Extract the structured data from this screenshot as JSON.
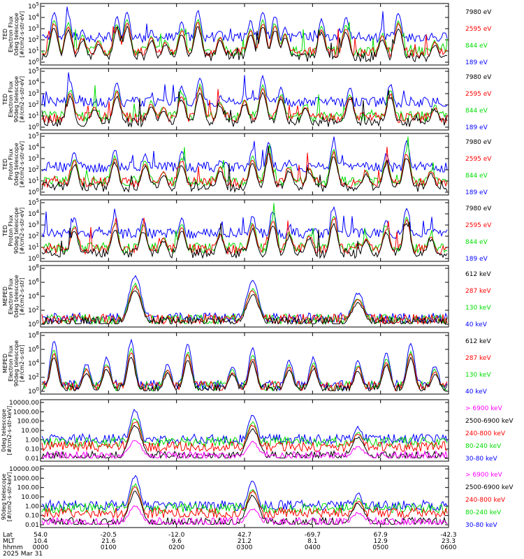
{
  "date_label": "2025 Mar 31",
  "axis_rows": [
    {
      "label": "Lat",
      "values": [
        "54.0",
        "-20.5",
        "-12.0",
        "42.7",
        "-69.7",
        "67.9",
        "-42.3"
      ]
    },
    {
      "label": "MLT",
      "values": [
        "10.4",
        "21.6",
        "9.6",
        "21.2",
        "8.1",
        "12.9",
        "23.3"
      ]
    },
    {
      "label": "hhmm",
      "values": [
        "0000",
        "0100",
        "0200",
        "0300",
        "0400",
        "0500",
        "0600"
      ]
    }
  ],
  "colors": {
    "black": "#000000",
    "red": "#ff0000",
    "green": "#00dd00",
    "blue": "#0000ff",
    "magenta": "#ff00ff"
  },
  "chart_data": [
    {
      "type": "line",
      "instrument": "TED",
      "ylabel": [
        "TED",
        "Electron Flux",
        "0deg telescope",
        "[#/cm2-s-str-eV]"
      ],
      "yscale": "log",
      "ylim": [
        1,
        100000
      ],
      "y_ticks": [
        "10^0",
        "10^1",
        "10^2",
        "10^3",
        "10^4",
        "10^5"
      ],
      "peaks": [
        0.03,
        0.065,
        0.1,
        0.14,
        0.185,
        0.21,
        0.27,
        0.305,
        0.345,
        0.385,
        0.44,
        0.515,
        0.545,
        0.575,
        0.6,
        0.69,
        0.75,
        0.84,
        0.88,
        0.97
      ],
      "legend": [
        {
          "name": "7980 eV",
          "color": "#000000"
        },
        {
          "name": "2595 eV",
          "color": "#ff0000"
        },
        {
          "name": "844 eV",
          "color": "#00dd00"
        },
        {
          "name": "189 eV",
          "color": "#0000ff"
        }
      ]
    },
    {
      "type": "line",
      "instrument": "TED",
      "ylabel": [
        "TED",
        "Electron Flux",
        "90deg telescope",
        "[#/cm2-s-str-eV]"
      ],
      "yscale": "log",
      "ylim": [
        1,
        100000
      ],
      "y_ticks": [
        "10^0",
        "10^1",
        "10^2",
        "10^3",
        "10^4",
        "10^5"
      ],
      "peaks": [
        0.07,
        0.13,
        0.185,
        0.27,
        0.3,
        0.345,
        0.39,
        0.44,
        0.5,
        0.545,
        0.59,
        0.65,
        0.76,
        0.86,
        0.97
      ],
      "legend": [
        {
          "name": "7980 eV",
          "color": "#000000"
        },
        {
          "name": "2595 eV",
          "color": "#ff0000"
        },
        {
          "name": "844 eV",
          "color": "#00dd00"
        },
        {
          "name": "189 eV",
          "color": "#0000ff"
        }
      ]
    },
    {
      "type": "line",
      "instrument": "TED",
      "ylabel": [
        "TED",
        "Proton Flux",
        "0deg telescope",
        "[#/cm2-s-str-eV]"
      ],
      "yscale": "log",
      "ylim": [
        1,
        100000
      ],
      "y_ticks": [
        "10^0",
        "10^1",
        "10^2",
        "10^3",
        "10^4",
        "10^5"
      ],
      "peaks": [
        0.08,
        0.18,
        0.255,
        0.3,
        0.345,
        0.44,
        0.52,
        0.56,
        0.61,
        0.66,
        0.72,
        0.8,
        0.85,
        0.9,
        0.96
      ],
      "legend": [
        {
          "name": "7980 eV",
          "color": "#000000"
        },
        {
          "name": "2595 eV",
          "color": "#ff0000"
        },
        {
          "name": "844 eV",
          "color": "#00dd00"
        },
        {
          "name": "189 eV",
          "color": "#0000ff"
        }
      ]
    },
    {
      "type": "line",
      "instrument": "TED",
      "ylabel": [
        "TED",
        "Proton Flux",
        "90deg telescope",
        "[#/cm2-s-str-eV]"
      ],
      "yscale": "log",
      "ylim": [
        1,
        100000
      ],
      "y_ticks": [
        "10^0",
        "10^1",
        "10^2",
        "10^3",
        "10^4",
        "10^5"
      ],
      "peaks": [
        0.08,
        0.18,
        0.25,
        0.3,
        0.345,
        0.44,
        0.52,
        0.57,
        0.61,
        0.66,
        0.72,
        0.8,
        0.85,
        0.9,
        0.96
      ],
      "legend": [
        {
          "name": "7980 eV",
          "color": "#000000"
        },
        {
          "name": "2595 eV",
          "color": "#ff0000"
        },
        {
          "name": "844 eV",
          "color": "#00dd00"
        },
        {
          "name": "189 eV",
          "color": "#0000ff"
        }
      ]
    },
    {
      "type": "line",
      "instrument": "MEPED",
      "ylabel": [
        "MEPED",
        "Electron Flux",
        "0deg telescope",
        "[#/cm2-s-str]"
      ],
      "yscale": "log",
      "ylim": [
        1,
        100000000
      ],
      "y_ticks": [
        "10^0",
        "10^2",
        "10^4",
        "10^6",
        "10^8"
      ],
      "peaks": [
        0.23,
        0.52,
        0.78
      ],
      "legend": [
        {
          "name": "612 keV",
          "color": "#000000"
        },
        {
          "name": "287 keV",
          "color": "#ff0000"
        },
        {
          "name": "130 keV",
          "color": "#00dd00"
        },
        {
          "name": "40 keV",
          "color": "#0000ff"
        }
      ]
    },
    {
      "type": "line",
      "instrument": "MEPED",
      "ylabel": [
        "MEPED",
        "Electron Flux",
        "90deg telescope",
        "[#/cm2-s-str]"
      ],
      "yscale": "log",
      "ylim": [
        1,
        100000000
      ],
      "y_ticks": [
        "10^0",
        "10^2",
        "10^4",
        "10^6",
        "10^8"
      ],
      "peaks": [
        0.03,
        0.11,
        0.16,
        0.22,
        0.31,
        0.36,
        0.47,
        0.52,
        0.61,
        0.67,
        0.78,
        0.85,
        0.91,
        0.97
      ],
      "legend": [
        {
          "name": "612 keV",
          "color": "#000000"
        },
        {
          "name": "287 keV",
          "color": "#ff0000"
        },
        {
          "name": "130 keV",
          "color": "#00dd00"
        },
        {
          "name": "40 keV",
          "color": "#0000ff"
        }
      ]
    },
    {
      "type": "line",
      "instrument": "MEPED",
      "ylabel": [
        "0deg telescope",
        "[#/cm2-s-str-keV]"
      ],
      "yscale": "log",
      "ylim": [
        0.01,
        10000
      ],
      "y_ticks": [
        "10000.00",
        "1000.00",
        "100.00",
        "10.00",
        "1.00",
        "0.10",
        "0.01"
      ],
      "peaks": [
        0.23,
        0.52,
        0.78
      ],
      "legend": [
        {
          "name": "> 6900 keV",
          "color": "#ff00ff"
        },
        {
          "name": "2500-6900 keV",
          "color": "#000000"
        },
        {
          "name": "240-800 keV",
          "color": "#ff0000"
        },
        {
          "name": "80-240 keV",
          "color": "#00dd00"
        },
        {
          "name": "30-80 keV",
          "color": "#0000ff"
        }
      ]
    },
    {
      "type": "line",
      "instrument": "MEPED",
      "ylabel": [
        "90deg telescope",
        "[#/cm2-s-str-keV]"
      ],
      "yscale": "log",
      "ylim": [
        0.01,
        10000
      ],
      "y_ticks": [
        "10000.00",
        "1000.00",
        "100.00",
        "10.00",
        "1.00",
        "0.10",
        "0.01"
      ],
      "peaks": [
        0.23,
        0.52,
        0.78
      ],
      "legend": [
        {
          "name": "> 6900 keV",
          "color": "#ff00ff"
        },
        {
          "name": "2500-6900 keV",
          "color": "#000000"
        },
        {
          "name": "240-800 keV",
          "color": "#ff0000"
        },
        {
          "name": "80-240 keV",
          "color": "#00dd00"
        },
        {
          "name": "30-80 keV",
          "color": "#0000ff"
        }
      ]
    }
  ]
}
